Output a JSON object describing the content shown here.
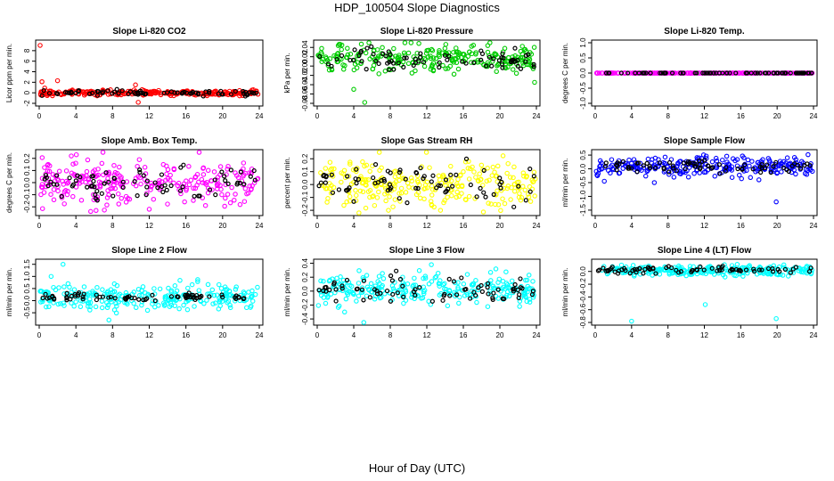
{
  "title": "HDP_100504  Slope Diagnostics",
  "xlabel": "Hour of Day (UTC)",
  "chart_data": [
    {
      "type": "scatter",
      "title": "Slope Li-820 CO2",
      "ylabel": "Licor ppm per min.",
      "color": "#ff0000",
      "xlim": [
        0,
        24
      ],
      "ylim": [
        -2,
        9.5
      ],
      "xticks": [
        0,
        4,
        8,
        12,
        16,
        20,
        24
      ],
      "xtick_labels": [
        "0",
        "4",
        "8",
        "12",
        "16",
        "20",
        "24"
      ],
      "yticks": [
        -2,
        0,
        2,
        4,
        6,
        8
      ],
      "ytick_labels": [
        "-2",
        "0",
        "2",
        "4",
        "6",
        "8"
      ],
      "center": 0.0,
      "spread": 0.25,
      "outliers": [
        [
          0.1,
          9.0
        ],
        [
          0.3,
          2.1
        ],
        [
          2.0,
          2.3
        ],
        [
          10.5,
          1.5
        ],
        [
          10.8,
          -1.8
        ],
        [
          0.6,
          0.9
        ]
      ],
      "black_spread": 0.25
    },
    {
      "type": "scatter",
      "title": "Slope Li-820 Pressure",
      "ylabel": "kPa per min.",
      "color": "#00cc00",
      "xlim": [
        0,
        24
      ],
      "ylim": [
        -0.08,
        0.05
      ],
      "xticks": [
        0,
        4,
        8,
        12,
        16,
        20,
        24
      ],
      "xtick_labels": [
        "0",
        "4",
        "8",
        "12",
        "16",
        "20",
        "24"
      ],
      "yticks": [
        -0.08,
        -0.06,
        -0.04,
        -0.02,
        0.0,
        0.02,
        0.04
      ],
      "ytick_labels": [
        "-0.08",
        "-0.06",
        "-0.04",
        "-0.02",
        "0.00",
        "0.02",
        "0.04"
      ],
      "center": 0.015,
      "spread": 0.015,
      "outliers": [
        [
          2.7,
          0.045
        ],
        [
          3.3,
          0.038
        ],
        [
          5.2,
          -0.078
        ],
        [
          4.0,
          -0.05
        ],
        [
          23.8,
          -0.035
        ]
      ],
      "black_spread": 0.012
    },
    {
      "type": "scatter",
      "title": "Slope Li-820 Temp.",
      "ylabel": "degrees C per min.",
      "color": "#ff00ff",
      "xlim": [
        0,
        24
      ],
      "ylim": [
        -1.0,
        1.0
      ],
      "xticks": [
        0,
        4,
        8,
        12,
        16,
        20,
        24
      ],
      "xtick_labels": [
        "0",
        "4",
        "8",
        "12",
        "16",
        "20",
        "24"
      ],
      "yticks": [
        -1.0,
        -0.5,
        0.0,
        0.5,
        1.0
      ],
      "ytick_labels": [
        "-1.0",
        "-0.5",
        "0.0",
        "0.5",
        "1.0"
      ],
      "center": 0.0,
      "spread": 0.0,
      "outliers": [],
      "black_spread": 0.0
    },
    {
      "type": "scatter",
      "title": "Slope Amb. Box Temp.",
      "ylabel": "degrees C per min.",
      "color": "#ff00ff",
      "xlim": [
        0,
        24
      ],
      "ylim": [
        -0.25,
        0.25
      ],
      "xticks": [
        0,
        4,
        8,
        12,
        16,
        20,
        24
      ],
      "xtick_labels": [
        "0",
        "4",
        "8",
        "12",
        "16",
        "20",
        "24"
      ],
      "yticks": [
        -0.2,
        -0.1,
        0.0,
        0.1,
        0.2
      ],
      "ytick_labels": [
        "-0.2",
        "-0.1",
        "0.0",
        "0.1",
        "0.2"
      ],
      "center": 0.0,
      "spread": 0.09,
      "outliers": [
        [
          3.5,
          0.22
        ],
        [
          12.0,
          -0.22
        ],
        [
          6.2,
          -0.23
        ]
      ],
      "black_spread": 0.06
    },
    {
      "type": "scatter",
      "title": "Slope Gas Stream RH",
      "ylabel": "percent per min.",
      "color": "#ffff00",
      "xlim": [
        0,
        24
      ],
      "ylim": [
        -0.22,
        0.25
      ],
      "xticks": [
        0,
        4,
        8,
        12,
        16,
        20,
        24
      ],
      "xtick_labels": [
        "0",
        "4",
        "8",
        "12",
        "16",
        "20",
        "24"
      ],
      "yticks": [
        -0.2,
        -0.1,
        0.0,
        0.1,
        0.2
      ],
      "ytick_labels": [
        "-0.2",
        "-0.1",
        "0.0",
        "0.1",
        "0.2"
      ],
      "center": 0.0,
      "spread": 0.09,
      "outliers": [
        [
          6.8,
          0.25
        ],
        [
          7.8,
          -0.2
        ],
        [
          13.5,
          -0.2
        ]
      ],
      "black_spread": 0.07
    },
    {
      "type": "scatter",
      "title": "Slope Sample Flow",
      "ylabel": "ml/min per min.",
      "color": "#0000ff",
      "xlim": [
        0,
        24
      ],
      "ylim": [
        -1.6,
        0.6
      ],
      "xticks": [
        0,
        4,
        8,
        12,
        16,
        20,
        24
      ],
      "xtick_labels": [
        "0",
        "4",
        "8",
        "12",
        "16",
        "20",
        "24"
      ],
      "yticks": [
        -1.5,
        -1.0,
        -0.5,
        0.0,
        0.5
      ],
      "ytick_labels": [
        "-1.5",
        "-1.0",
        "-0.5",
        "0.0",
        "0.5"
      ],
      "center": 0.1,
      "spread": 0.18,
      "outliers": [
        [
          19.9,
          -1.2
        ],
        [
          1.0,
          -0.45
        ],
        [
          6.5,
          -0.5
        ],
        [
          18.0,
          -0.4
        ]
      ],
      "black_spread": 0.12
    },
    {
      "type": "scatter",
      "title": "Slope Line 2 Flow",
      "ylabel": "ml/min per min.",
      "color": "#00ffff",
      "xlim": [
        0,
        24
      ],
      "ylim": [
        -0.9,
        1.6
      ],
      "xticks": [
        0,
        4,
        8,
        12,
        16,
        20,
        24
      ],
      "xtick_labels": [
        "0",
        "4",
        "8",
        "12",
        "16",
        "20",
        "24"
      ],
      "yticks": [
        -0.5,
        0.0,
        0.5,
        1.0,
        1.5
      ],
      "ytick_labels": [
        "-0.5",
        "0.0",
        "0.5",
        "1.0",
        "1.5"
      ],
      "center": 0.15,
      "spread": 0.25,
      "outliers": [
        [
          2.6,
          1.5
        ],
        [
          1.3,
          1.0
        ],
        [
          7.6,
          -0.8
        ],
        [
          23.8,
          0.55
        ]
      ],
      "black_spread": 0.08
    },
    {
      "type": "scatter",
      "title": "Slope Line 3 Flow",
      "ylabel": "ml/min per min.",
      "color": "#00ffff",
      "xlim": [
        0,
        24
      ],
      "ylim": [
        -0.45,
        0.42
      ],
      "xticks": [
        0,
        4,
        8,
        12,
        16,
        20,
        24
      ],
      "xtick_labels": [
        "0",
        "4",
        "8",
        "12",
        "16",
        "20",
        "24"
      ],
      "yticks": [
        -0.4,
        -0.2,
        0.0,
        0.2,
        0.4
      ],
      "ytick_labels": [
        "-0.4",
        "-0.2",
        "0.0",
        "0.2",
        "0.4"
      ],
      "center": 0.02,
      "spread": 0.11,
      "outliers": [
        [
          5.1,
          -0.45
        ],
        [
          12.5,
          0.38
        ],
        [
          3.0,
          -0.3
        ]
      ],
      "black_spread": 0.09
    },
    {
      "type": "scatter",
      "title": "Slope Line 4 (LT) Flow",
      "ylabel": "ml/min per min.",
      "color": "#00ffff",
      "xlim": [
        0,
        24
      ],
      "ylim": [
        -0.8,
        0.15
      ],
      "xticks": [
        0,
        4,
        8,
        12,
        16,
        20,
        24
      ],
      "xtick_labels": [
        "0",
        "4",
        "8",
        "12",
        "16",
        "20",
        "24"
      ],
      "yticks": [
        -0.8,
        -0.6,
        -0.4,
        -0.2,
        0.0
      ],
      "ytick_labels": [
        "-0.8",
        "-0.6",
        "-0.4",
        "-0.2",
        "0.0"
      ],
      "center": 0.02,
      "spread": 0.04,
      "outliers": [
        [
          4.0,
          -0.78
        ],
        [
          19.9,
          -0.74
        ],
        [
          12.1,
          -0.52
        ]
      ],
      "black_spread": 0.03
    }
  ]
}
